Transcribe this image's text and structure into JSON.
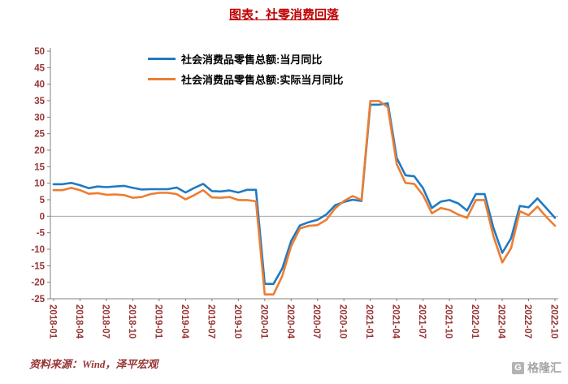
{
  "title": "图表：社零消费回落",
  "source": "资料来源：Wind，泽平宏观",
  "watermark": "格隆汇",
  "watermark_icon": "G",
  "colors": {
    "title": "#c00000",
    "axis_label": "#963634",
    "axis_line": "#808080",
    "zero_line": "#a6a6a6",
    "series1": "#1f7ac4",
    "series2": "#ed7d31",
    "legend_text": "#000000",
    "watermark": "#a6a6a6"
  },
  "chart_data": {
    "type": "line",
    "title": "图表：社零消费回落",
    "xlabel": "",
    "ylabel": "",
    "ylim": [
      -25,
      50
    ],
    "y_tick_step": 5,
    "x_tick_every": 3,
    "grid": false,
    "legend_position": "top-inside",
    "x": [
      "2018-01",
      "2018-02",
      "2018-03",
      "2018-04",
      "2018-05",
      "2018-06",
      "2018-07",
      "2018-08",
      "2018-09",
      "2018-10",
      "2018-11",
      "2018-12",
      "2019-01",
      "2019-02",
      "2019-03",
      "2019-04",
      "2019-05",
      "2019-06",
      "2019-07",
      "2019-08",
      "2019-09",
      "2019-10",
      "2019-11",
      "2019-12",
      "2020-01",
      "2020-02",
      "2020-03",
      "2020-04",
      "2020-05",
      "2020-06",
      "2020-07",
      "2020-08",
      "2020-09",
      "2020-10",
      "2020-11",
      "2020-12",
      "2021-01",
      "2021-02",
      "2021-03",
      "2021-04",
      "2021-05",
      "2021-06",
      "2021-07",
      "2021-08",
      "2021-09",
      "2021-10",
      "2021-11",
      "2021-12",
      "2022-01",
      "2022-02",
      "2022-03",
      "2022-04",
      "2022-05",
      "2022-06",
      "2022-07",
      "2022-08",
      "2022-09",
      "2022-10"
    ],
    "series": [
      {
        "name": "社会消费品零售总额:当月同比",
        "color": "#1f7ac4",
        "values": [
          9.7,
          9.7,
          10.1,
          9.4,
          8.5,
          9.0,
          8.8,
          9.0,
          9.2,
          8.6,
          8.1,
          8.2,
          8.2,
          8.2,
          8.7,
          7.2,
          8.6,
          9.8,
          7.6,
          7.5,
          7.8,
          7.2,
          8.0,
          8.0,
          -20.5,
          -20.5,
          -15.8,
          -7.5,
          -2.8,
          -1.8,
          -1.1,
          0.5,
          3.3,
          4.3,
          5.0,
          4.6,
          33.8,
          33.8,
          34.2,
          17.7,
          12.4,
          12.1,
          8.5,
          2.5,
          4.4,
          4.9,
          3.9,
          1.7,
          6.7,
          6.7,
          -3.5,
          -11.1,
          -6.7,
          3.1,
          2.7,
          5.4,
          2.5,
          -0.5
        ]
      },
      {
        "name": "社会消费品零售总额:实际当月同比",
        "color": "#ed7d31",
        "values": [
          7.9,
          7.9,
          8.6,
          7.9,
          6.8,
          7.0,
          6.5,
          6.6,
          6.4,
          5.6,
          5.8,
          6.7,
          7.1,
          7.1,
          6.7,
          5.1,
          6.4,
          7.9,
          5.7,
          5.6,
          5.8,
          4.9,
          4.9,
          4.5,
          -23.7,
          -23.7,
          -18.1,
          -9.1,
          -3.7,
          -2.9,
          -2.7,
          -1.1,
          2.4,
          4.6,
          6.1,
          4.9,
          34.9,
          34.9,
          33.0,
          15.8,
          10.1,
          9.8,
          6.4,
          0.9,
          2.5,
          1.9,
          0.5,
          -0.5,
          4.9,
          4.9,
          -6.0,
          -14.0,
          -9.7,
          1.5,
          0.3,
          2.9,
          -0.2,
          -2.9
        ]
      }
    ]
  }
}
